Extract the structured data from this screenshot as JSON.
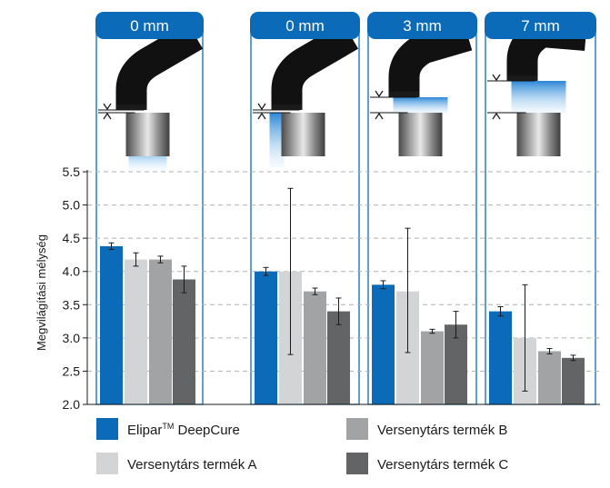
{
  "chart_data": {
    "type": "bar",
    "ylabel": "Megvilágítási mélység",
    "ylim": [
      2.0,
      5.5
    ],
    "yticks": [
      "2.0",
      "2.5",
      "3.0",
      "3.5",
      "4.0",
      "4.5",
      "5.0",
      "5.5"
    ],
    "ytick_values": [
      2.0,
      2.5,
      3.0,
      3.5,
      4.0,
      4.5,
      5.0,
      5.5
    ],
    "grid": "dashed horizontal",
    "groups": [
      {
        "label": "0 mm",
        "present": [
          true,
          true,
          true,
          true
        ]
      },
      {
        "label": "0 mm",
        "present": [
          true,
          true,
          true,
          true
        ]
      },
      {
        "label": "3 mm",
        "present": [
          true,
          true,
          true,
          true
        ]
      },
      {
        "label": "7 mm",
        "present": [
          true,
          true,
          true,
          true
        ]
      }
    ],
    "series": [
      {
        "name": "EliparTM DeepCure",
        "color": "#0b6bb8",
        "values": [
          4.38,
          4.0,
          3.8,
          3.4
        ],
        "err_low": [
          0.05,
          0.06,
          0.06,
          0.07
        ],
        "err_high": [
          0.05,
          0.06,
          0.06,
          0.07
        ]
      },
      {
        "name": "Versenytárs termék A",
        "color": "#d3d4d6",
        "values": [
          4.18,
          4.0,
          3.7,
          3.0
        ],
        "err_low": [
          0.1,
          1.25,
          0.92,
          0.8
        ],
        "err_high": [
          0.1,
          1.25,
          0.95,
          0.8
        ]
      },
      {
        "name": "Versenytárs termék B",
        "color": "#a1a3a5",
        "values": [
          4.18,
          3.7,
          3.1,
          2.8
        ],
        "err_low": [
          0.05,
          0.05,
          0.03,
          0.04
        ],
        "err_high": [
          0.05,
          0.05,
          0.03,
          0.04
        ]
      },
      {
        "name": "Versenytárs termék C",
        "color": "#626466",
        "values": [
          3.88,
          3.4,
          3.2,
          2.7
        ],
        "err_low": [
          0.2,
          0.2,
          0.2,
          0.04
        ],
        "err_high": [
          0.2,
          0.2,
          0.2,
          0.04
        ]
      }
    ],
    "legend": {
      "placement": "bottom",
      "items": [
        {
          "label": "Elipar",
          "sup": "TM",
          "suffix": " DeepCure",
          "color": "#0b6bb8"
        },
        {
          "label": "Versenytárs termék B",
          "sup": "",
          "suffix": "",
          "color": "#a1a3a5"
        },
        {
          "label": "Versenytárs termék A",
          "sup": "",
          "suffix": "",
          "color": "#d3d4d6"
        },
        {
          "label": "Versenytárs termék C",
          "sup": "",
          "suffix": "",
          "color": "#626466"
        }
      ]
    },
    "colors": {
      "accent": "#0b6bb8",
      "header_text": "#ffffff",
      "frame": "#0b6bb8",
      "grid": "#b0b0b0"
    }
  }
}
